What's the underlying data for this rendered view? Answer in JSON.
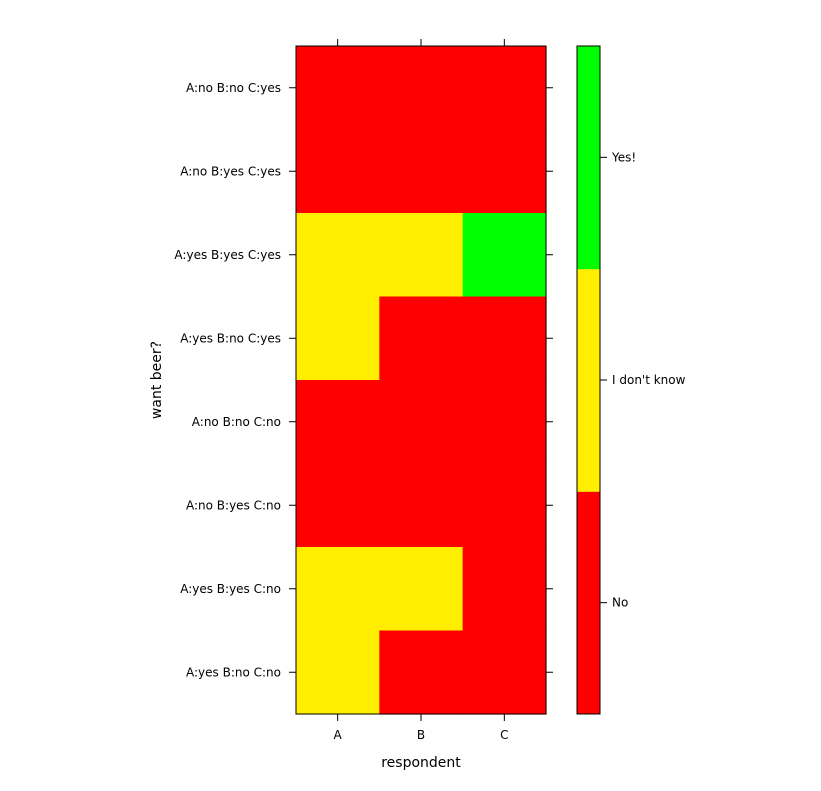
{
  "chart_data": {
    "type": "heatmap",
    "title": "",
    "xlabel": "respondent",
    "ylabel": "want beer?",
    "x_categories": [
      "A",
      "B",
      "C"
    ],
    "y_categories": [
      "A:no B:no C:yes",
      "A:no B:yes C:yes",
      "A:yes B:yes C:yes",
      "A:yes B:no C:yes",
      "A:no B:no C:no",
      "A:no B:yes C:no",
      "A:yes B:yes C:no",
      "A:yes B:no C:no"
    ],
    "levels": [
      "No",
      "I don't know",
      "Yes!"
    ],
    "level_colors": [
      "#ff0000",
      "#ffee00",
      "#00ff00"
    ],
    "values": [
      [
        0,
        0,
        0
      ],
      [
        0,
        0,
        0
      ],
      [
        1,
        1,
        2
      ],
      [
        1,
        0,
        0
      ],
      [
        0,
        0,
        0
      ],
      [
        0,
        0,
        0
      ],
      [
        1,
        1,
        0
      ],
      [
        1,
        0,
        0
      ]
    ],
    "legend_position": "right",
    "grid": false
  }
}
